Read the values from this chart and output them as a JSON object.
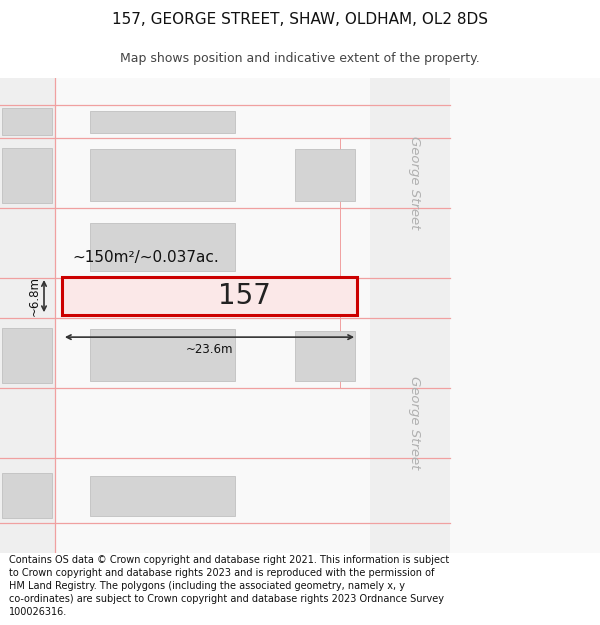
{
  "title_line1": "157, GEORGE STREET, SHAW, OLDHAM, OL2 8DS",
  "title_line2": "Map shows position and indicative extent of the property.",
  "footer_text": "Contains OS data © Crown copyright and database right 2021. This information is subject to Crown copyright and database rights 2023 and is reproduced with the permission of HM Land Registry. The polygons (including the associated geometry, namely x, y co-ordinates) are subject to Crown copyright and database rights 2023 Ordnance Survey 100026316.",
  "background_color": "#ffffff",
  "building_fill": "#d4d4d4",
  "building_edge": "#c0c0c0",
  "highlight_fill": "#fbe8e8",
  "highlight_edge": "#cc0000",
  "street_label_color": "#b0b0b0",
  "parcel_line_color": "#f0a0a0",
  "dim_color": "#333333",
  "road_fill": "#f2f2f2",
  "map_fill": "#f9f9f9",
  "label_area": "~150m²/~0.037ac.",
  "label_number": "157",
  "label_width": "~23.6m",
  "label_height": "~6.8m",
  "george_street_label": "George Street"
}
